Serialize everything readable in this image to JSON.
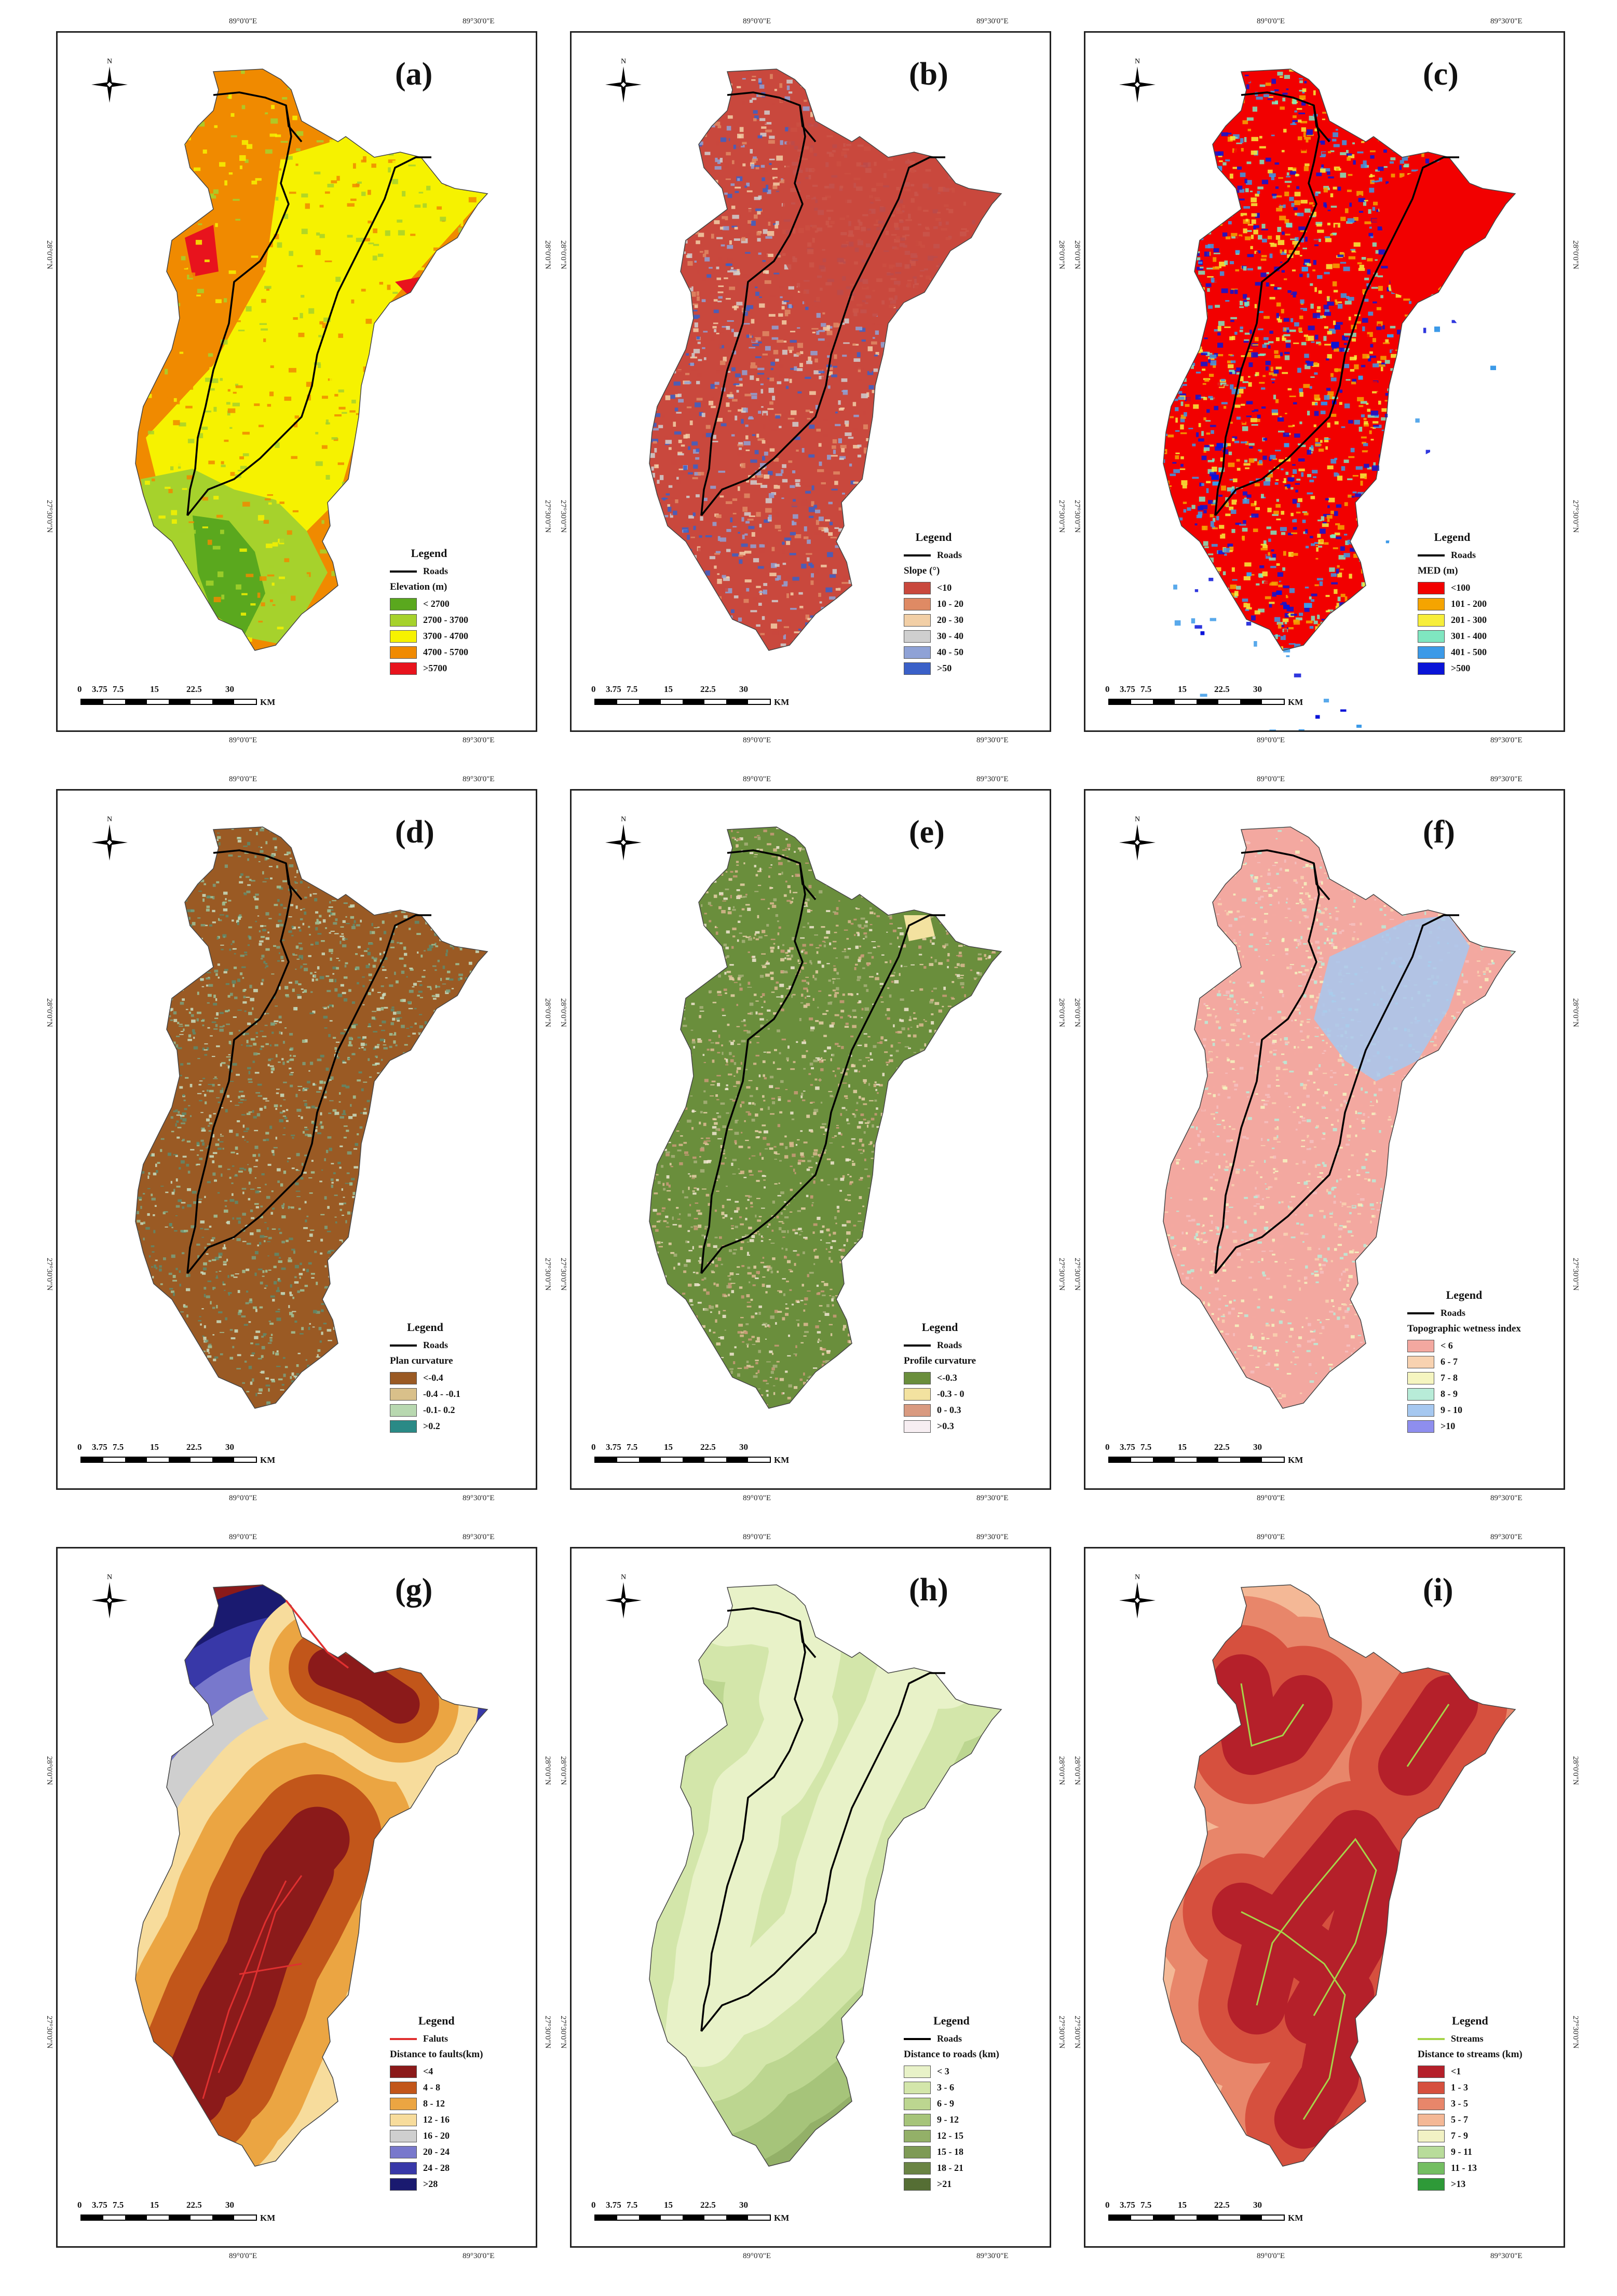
{
  "grid_labels": {
    "top": [
      "89°0'0\"E",
      "89°30'0\"E"
    ],
    "bottom": [
      "89°0'0\"E",
      "89°30'0\"E"
    ],
    "left": [
      "28°0'0\"N",
      "27°30'0\"N"
    ],
    "right": [
      "28°0'0\"N",
      "27°30'0\"N"
    ]
  },
  "north_label": "N",
  "scale": {
    "ticks": [
      "0",
      "3.75",
      "7.5",
      "15",
      "22.5",
      "30"
    ],
    "unit": "KM"
  },
  "legend_title": "Legend",
  "panels": [
    {
      "letter": "(a)",
      "line_label": "Roads",
      "line_color": "#000000",
      "subtitle": "Elevation (m)",
      "classes": [
        {
          "label": "< 2700",
          "color": "#5aa81e"
        },
        {
          "label": "2700 - 3700",
          "color": "#a6d22c"
        },
        {
          "label": "3700 - 4700",
          "color": "#f6f200"
        },
        {
          "label": "4700 - 5700",
          "color": "#f08a00"
        },
        {
          "label": ">5700",
          "color": "#e8131d"
        }
      ]
    },
    {
      "letter": "(b)",
      "line_label": "Roads",
      "line_color": "#000000",
      "subtitle": "Slope (°)",
      "classes": [
        {
          "label": "<10",
          "color": "#c9483d"
        },
        {
          "label": "10 - 20",
          "color": "#df8a64"
        },
        {
          "label": "20 - 30",
          "color": "#f2cfa6"
        },
        {
          "label": "30 - 40",
          "color": "#cfcfcf"
        },
        {
          "label": "40 - 50",
          "color": "#8fa2d6"
        },
        {
          "label": ">50",
          "color": "#3a60c8"
        }
      ]
    },
    {
      "letter": "(c)",
      "line_label": "Roads",
      "line_color": "#000000",
      "subtitle": "MED (m)",
      "classes": [
        {
          "label": "<100",
          "color": "#f20000"
        },
        {
          "label": "101 - 200",
          "color": "#f5a400"
        },
        {
          "label": "201 - 300",
          "color": "#f7ee3a"
        },
        {
          "label": "301 - 400",
          "color": "#7fe6c0"
        },
        {
          "label": "401 - 500",
          "color": "#3c9ae8"
        },
        {
          "label": ">500",
          "color": "#0a14d8"
        }
      ]
    },
    {
      "letter": "(d)",
      "line_label": "Roads",
      "line_color": "#000000",
      "subtitle": "Plan curvature",
      "classes": [
        {
          "label": "<-0.4",
          "color": "#9a5a24"
        },
        {
          "label": "-0.4 - -0.1",
          "color": "#d9c08a"
        },
        {
          "label": "-0.1- 0.2",
          "color": "#b8d8b0"
        },
        {
          "label": ">0.2",
          "color": "#2a8a86"
        }
      ]
    },
    {
      "letter": "(e)",
      "line_label": "Roads",
      "line_color": "#000000",
      "subtitle": "Profile curvature",
      "classes": [
        {
          "label": "<-0.3",
          "color": "#6a8e3c"
        },
        {
          "label": "-0.3 - 0",
          "color": "#f3e2a0"
        },
        {
          "label": "0 - 0.3",
          "color": "#d99a80"
        },
        {
          "label": ">0.3",
          "color": "#f7eef2"
        }
      ]
    },
    {
      "letter": "(f)",
      "line_label": "Roads",
      "line_color": "#000000",
      "subtitle": "Topographic wetness index",
      "classes": [
        {
          "label": "< 6",
          "color": "#f3a8a0"
        },
        {
          "label": "6 - 7",
          "color": "#f8d2b0"
        },
        {
          "label": "7 - 8",
          "color": "#f5f5c0"
        },
        {
          "label": "8 - 9",
          "color": "#b8ecd8"
        },
        {
          "label": "9 - 10",
          "color": "#a6c8f0"
        },
        {
          "label": ">10",
          "color": "#8e8eee"
        }
      ]
    },
    {
      "letter": "(g)",
      "line_label": "Faluts",
      "line_color": "#e03030",
      "subtitle": "Distance to faults(km)",
      "classes": [
        {
          "label": "<4",
          "color": "#8b1a1a"
        },
        {
          "label": "4 - 8",
          "color": "#c2561a"
        },
        {
          "label": "8 - 12",
          "color": "#eba542"
        },
        {
          "label": "12 - 16",
          "color": "#f7dc9c"
        },
        {
          "label": "16 - 20",
          "color": "#cfcfcf"
        },
        {
          "label": "20 - 24",
          "color": "#7878cc"
        },
        {
          "label": "24 - 28",
          "color": "#3838a8"
        },
        {
          "label": ">28",
          "color": "#1a1a70"
        }
      ]
    },
    {
      "letter": "(h)",
      "line_label": "Roads",
      "line_color": "#000000",
      "subtitle": "Distance to roads (km)",
      "classes": [
        {
          "label": "< 3",
          "color": "#e8f2c8"
        },
        {
          "label": "3 - 6",
          "color": "#d3e6aa"
        },
        {
          "label": "6 - 9",
          "color": "#bcd690"
        },
        {
          "label": "9 - 12",
          "color": "#a6c47a"
        },
        {
          "label": "12 - 15",
          "color": "#93b068"
        },
        {
          "label": "15 - 18",
          "color": "#7e9a55"
        },
        {
          "label": "18 - 21",
          "color": "#6a8444"
        },
        {
          "label": ">21",
          "color": "#556e34"
        }
      ]
    },
    {
      "letter": "(i)",
      "line_label": "Streams",
      "line_color": "#a6d44a",
      "subtitle": "Distance to streams (km)",
      "classes": [
        {
          "label": "<1",
          "color": "#b5202a"
        },
        {
          "label": "1 - 3",
          "color": "#d6503e"
        },
        {
          "label": "3 - 5",
          "color": "#e8866a"
        },
        {
          "label": "5 - 7",
          "color": "#f4b896"
        },
        {
          "label": "7 - 9",
          "color": "#f2f2c4"
        },
        {
          "label": "9 - 11",
          "color": "#b8dc9a"
        },
        {
          "label": "11 - 13",
          "color": "#74be62"
        },
        {
          "label": ">13",
          "color": "#2e9a38"
        }
      ]
    }
  ]
}
